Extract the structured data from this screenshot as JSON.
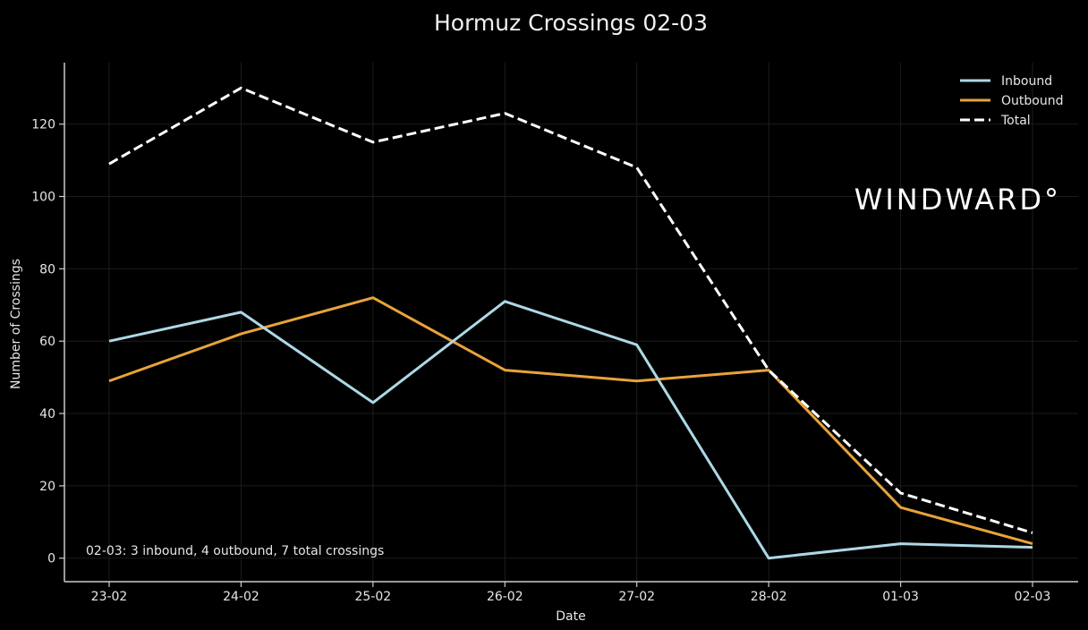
{
  "chart_data": {
    "type": "line",
    "title": "Hormuz Crossings 02-03",
    "xlabel": "Date",
    "ylabel": "Number of Crossings",
    "categories": [
      "23-02",
      "24-02",
      "25-02",
      "26-02",
      "27-02",
      "28-02",
      "01-03",
      "02-03"
    ],
    "yticks": [
      0,
      20,
      40,
      60,
      80,
      100,
      120
    ],
    "ylim": [
      -6.5,
      137
    ],
    "grid": true,
    "legend_position": "top-right",
    "series": [
      {
        "name": "Inbound",
        "values": [
          60,
          68,
          43,
          71,
          59,
          0,
          4,
          3
        ],
        "color": "#add8e6",
        "style": "solid"
      },
      {
        "name": "Outbound",
        "values": [
          49,
          62,
          72,
          52,
          49,
          52,
          14,
          4
        ],
        "color": "#e8a33a",
        "style": "solid"
      },
      {
        "name": "Total",
        "values": [
          109,
          130,
          115,
          123,
          108,
          52,
          18,
          7
        ],
        "color": "#ffffff",
        "style": "dashed"
      }
    ],
    "annotation": "02-03: 3 inbound, 4 outbound, 7 total crossings"
  },
  "watermark": "WINDWARD°",
  "colors": {
    "background": "#000000",
    "axis": "#cccccc",
    "grid": "#1c1c1c",
    "text": "#e6e6e6"
  }
}
